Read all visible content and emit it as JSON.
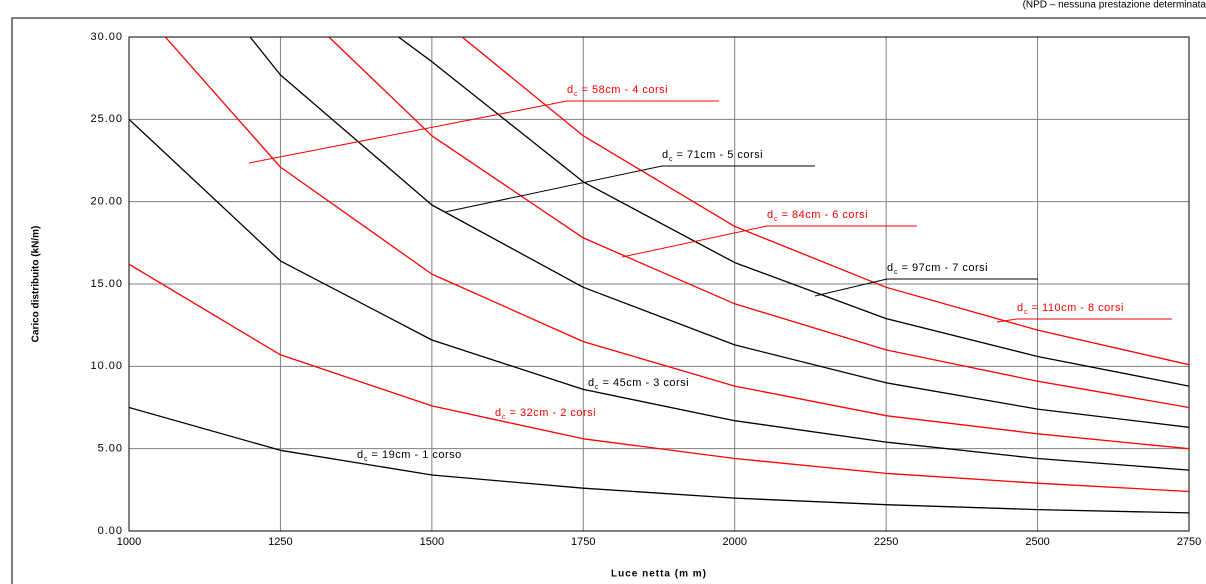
{
  "chart_data": {
    "type": "line",
    "note": "(NPD – nessuna prestazione determinata",
    "xlabel": "Luce netta (m m)",
    "ylabel": "Carico distribuito (kN/m)",
    "xlim": [
      1000,
      2750
    ],
    "xticks": [
      1000,
      1250,
      1500,
      1750,
      2000,
      2250,
      2500,
      2750
    ],
    "ylim": [
      0,
      30
    ],
    "yticks": [
      {
        "value": 0,
        "label": "0.00"
      },
      {
        "value": 5,
        "label": "5.00"
      },
      {
        "value": 10,
        "label": "10.00"
      },
      {
        "value": 15,
        "label": "15.00"
      },
      {
        "value": 20,
        "label": "20.00"
      },
      {
        "value": 25,
        "label": "25.00"
      },
      {
        "value": 30,
        "label": "30.00"
      }
    ],
    "grid": true,
    "label_symbol": "d",
    "label_subscript": "c",
    "series": [
      {
        "name": " = 19cm - 1 corso",
        "color": "#000000",
        "x": [
          1000,
          1250,
          1500,
          1750,
          2000,
          2250,
          2500,
          2750
        ],
        "values": [
          7.5,
          4.9,
          3.4,
          2.6,
          2.0,
          1.6,
          1.3,
          1.1
        ]
      },
      {
        "name": " = 32cm - 2 corsi",
        "color": "#ff0000",
        "x": [
          1000,
          1250,
          1500,
          1750,
          2000,
          2250,
          2500,
          2750
        ],
        "values": [
          16.2,
          10.7,
          7.6,
          5.6,
          4.4,
          3.5,
          2.9,
          2.4
        ]
      },
      {
        "name": " = 45cm - 3 corsi",
        "color": "#000000",
        "x": [
          1000,
          1250,
          1500,
          1750,
          2000,
          2250,
          2500,
          2750
        ],
        "values": [
          25.0,
          16.4,
          11.6,
          8.6,
          6.7,
          5.4,
          4.4,
          3.7
        ]
      },
      {
        "name": " = 58cm - 4 corsi",
        "color": "#ff0000",
        "x": [
          1060,
          1250,
          1500,
          1750,
          2000,
          2250,
          2500,
          2750
        ],
        "values": [
          30,
          22.1,
          15.6,
          11.5,
          8.8,
          7.0,
          5.9,
          5.0
        ]
      },
      {
        "name": " = 71cm - 5 corsi",
        "color": "#000000",
        "x": [
          1200,
          1250,
          1500,
          1750,
          2000,
          2250,
          2500,
          2750
        ],
        "values": [
          30,
          27.7,
          19.8,
          14.8,
          11.3,
          9.0,
          7.4,
          6.3
        ]
      },
      {
        "name": " = 84cm - 6 corsi",
        "color": "#ff0000",
        "x": [
          1330,
          1500,
          1750,
          2000,
          2250,
          2500,
          2750
        ],
        "values": [
          30,
          24.0,
          17.8,
          13.8,
          11.0,
          9.1,
          7.5
        ]
      },
      {
        "name": " = 97cm - 7 corsi",
        "color": "#000000",
        "x": [
          1445,
          1500,
          1750,
          2000,
          2250,
          2500,
          2750
        ],
        "values": [
          30,
          28.5,
          21.2,
          16.3,
          12.9,
          10.6,
          8.8
        ]
      },
      {
        "name": " = 110cm - 8 corsi",
        "color": "#ff0000",
        "x": [
          1550,
          1750,
          2000,
          2250,
          2500,
          2750
        ],
        "values": [
          30,
          24.0,
          18.5,
          14.8,
          12.2,
          10.1
        ]
      }
    ]
  }
}
